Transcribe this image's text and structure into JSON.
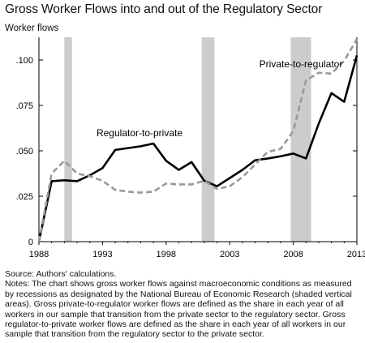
{
  "chart_data": {
    "type": "line",
    "title": "Gross Worker Flows into and out of the Regulatory Sector",
    "ylabel": "Worker flows",
    "xlabel": "",
    "xlim": [
      1988,
      2013
    ],
    "ylim": [
      0,
      0.1125
    ],
    "x_ticks": [
      1988,
      1993,
      1998,
      2003,
      2008,
      2013
    ],
    "x_tick_labels": [
      "1988",
      "1993",
      "1998",
      "2003",
      "2008",
      "2013"
    ],
    "y_ticks": [
      0,
      0.025,
      0.05,
      0.075,
      0.1
    ],
    "y_tick_labels": [
      "0",
      ".025",
      ".050",
      ".075",
      ".100"
    ],
    "recessions": [
      [
        1990.0,
        1990.6
      ],
      [
        2000.8,
        2001.8
      ],
      [
        2007.8,
        2009.4
      ]
    ],
    "recession_color": "#cccccc",
    "x": [
      1988,
      1989,
      1990,
      1991,
      1992,
      1993,
      1994,
      1995,
      1996,
      1997,
      1998,
      1999,
      2000,
      2001,
      2002,
      2003,
      2004,
      2005,
      2006,
      2007,
      2008,
      2009,
      2010,
      2011,
      2012,
      2013
    ],
    "series": [
      {
        "name": "Regulator-to-private",
        "style": "solid",
        "color": "#000000",
        "values": [
          0,
          0.0333,
          0.0338,
          0.0333,
          0.0365,
          0.0405,
          0.0505,
          0.0515,
          0.0525,
          0.054,
          0.0445,
          0.0395,
          0.0438,
          0.0335,
          0.0305,
          0.035,
          0.0395,
          0.0448,
          0.0458,
          0.047,
          0.0485,
          0.0458,
          0.065,
          0.0818,
          0.077,
          0.1025
        ]
      },
      {
        "name": "Private-to-regulator",
        "style": "dashed",
        "color": "#999999",
        "values": [
          0,
          0.0375,
          0.0445,
          0.0375,
          0.036,
          0.0335,
          0.0285,
          0.0275,
          0.027,
          0.0275,
          0.032,
          0.0315,
          0.0315,
          0.0335,
          0.029,
          0.0305,
          0.0355,
          0.0425,
          0.0495,
          0.051,
          0.0608,
          0.0888,
          0.093,
          0.0925,
          0.0995,
          0.1115
        ]
      }
    ],
    "annotations": [
      {
        "text": "Private-to-regulator",
        "series": 1
      },
      {
        "text": "Regulator-to-private",
        "series": 0
      }
    ]
  },
  "notes": {
    "source": "Source: Authors' calculations.",
    "text": "Notes: The chart shows gross worker flows against macroeconomic conditions as measured by recessions as designated by the National Bureau of Economic Research (shaded vertical areas). Gross private-to-regulator worker flows are defined as the share in each year of all workers in our sample that transition from the private sector to the regulatory sector. Gross regulator-to-private worker flows are defined as the share in each year of all workers in our sample that transition from the regulatory sector to the private sector."
  }
}
